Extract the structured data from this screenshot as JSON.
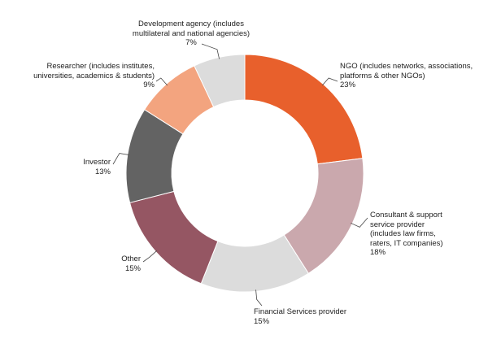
{
  "chart_data": {
    "type": "pie",
    "variant": "donut",
    "legend": "none",
    "slices": [
      {
        "lines": [
          "NGO (includes networks, associations,",
          "platforms & other NGOs)"
        ],
        "value_label": "23%",
        "value": 23,
        "color": "#e8602c"
      },
      {
        "lines": [
          "Consultant & support",
          "service provider",
          "(includes law firms,",
          "raters, IT companies)"
        ],
        "value_label": "18%",
        "value": 18,
        "color": "#caa8ad"
      },
      {
        "lines": [
          "Financial Services provider"
        ],
        "value_label": "15%",
        "value": 15,
        "color": "#dcdcdc"
      },
      {
        "lines": [
          "Other"
        ],
        "value_label": "15%",
        "value": 15,
        "color": "#955663"
      },
      {
        "lines": [
          "Investor"
        ],
        "value_label": "13%",
        "value": 13,
        "color": "#636363"
      },
      {
        "lines": [
          "Researcher (includes institutes,",
          "universities, academics & students)"
        ],
        "value_label": "9%",
        "value": 9,
        "color": "#f3a47f"
      },
      {
        "lines": [
          "Development agency (includes",
          "multilateral and national agencies)"
        ],
        "value_label": "7%",
        "value": 7,
        "color": "#dcdcdc"
      }
    ]
  }
}
